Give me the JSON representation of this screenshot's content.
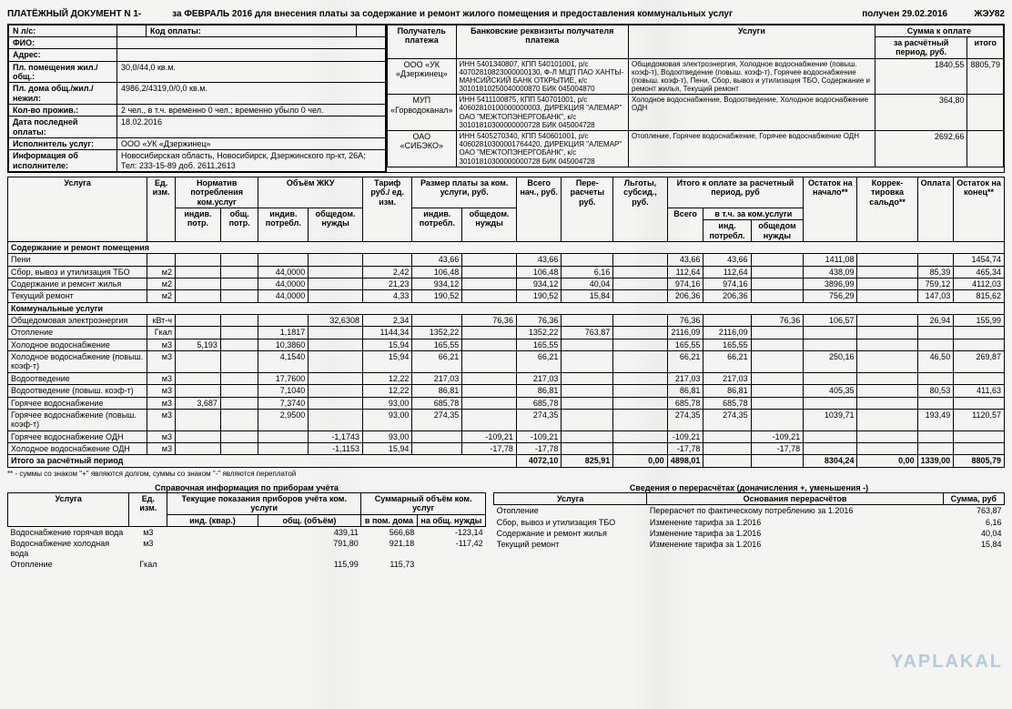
{
  "header": {
    "title_left": "ПЛАТЁЖНЫЙ ДОКУМЕНТ N 1-",
    "title_mid": "за ФЕВРАЛЬ 2016 для внесения платы за содержание и ремонт жилого помещения и предоставления коммунальных услуг",
    "received": "получен 29.02.2016",
    "right": "ЖЭУ82"
  },
  "client": {
    "acc_label": "N л/с:",
    "code_label": "Код оплаты:",
    "code_val": "",
    "fio_label": "ФИО:",
    "addr_label": "Адрес:",
    "area_label": "Пл. помещения жил./общ.:",
    "area_val": "30,0/44,0 кв.м.",
    "house_label": "Пл. дома общ./жил./нежил:",
    "house_val": "4986,2/4319,0/0,0 кв.м.",
    "residents_label": "Кол-во прожив.:",
    "residents_val": "2 чел., в т.ч. временно 0 чел.; временно убыло 0 чел.",
    "lastpay_label": "Дата последней оплаты:",
    "lastpay_val": "18.02.2016",
    "exec_label": "Исполнитель услуг:",
    "exec_val": "ООО «УК «Дзержинец»",
    "execinfo_label": "Информация об исполнителе:",
    "execinfo_val": "Новосибирская область, Новосибирск, Дзержинского пр-кт, 26А; Тел: 233-15-89 доб. 2611,2613"
  },
  "recipients_header": {
    "c1": "Получатель платежа",
    "c2": "Банковские реквизиты получателя платежа",
    "c3": "Услуги",
    "c4": "Сумма к оплате",
    "c4a": "за расчётный период, руб.",
    "c4b": "итого"
  },
  "recipients": [
    {
      "name": "ООО «УК «Дзержинец»",
      "bank": "ИНН 5401340807, КПП 540101001, р/с 40702810823000000130, Ф-Л МЦП ПАО ХАНТЫ-МАНСИЙСКИЙ БАНК ОТКРЫТИЕ, к/с 30101810250040000870 БИК 045004870",
      "svc": "Общедомовая электроэнергия, Холодное водоснабжение (повыш. коэф-т), Водоотведение (повыш. коэф-т), Горячее водоснабжение (повыш. коэф-т), Пени, Сбор, вывоз и утилизация ТБО, Содержание и ремонт жилья, Текущий ремонт",
      "p": "1840,55",
      "t": "8805,79"
    },
    {
      "name": "МУП «Горводоканал»",
      "bank": "ИНН 5411100875, КПП 540701001, р/с 40602810100000000003, ДИРЕКЦИЯ \"АЛЕМАР\" ОАО \"МЕЖТОПЭНЕРГОБАНК\", к/с 30101810300000000728 БИК 045004728",
      "svc": "Холодное водоснабжение, Водоотведение, Холодное водоснабжение ОДН",
      "p": "364,80",
      "t": ""
    },
    {
      "name": "ОАО «СИБЭКО»",
      "bank": "ИНН 5405270340, КПП 540601001, р/с 40602810300001764420, ДИРЕКЦИЯ \"АЛЕМАР\" ОАО \"МЕЖТОПЭНЕРГОБАНК\", к/с 30101810300000000728 БИК 045004728",
      "svc": "Отопление, Горячее водоснабжение, Горячее водоснабжение ОДН",
      "p": "2692,66",
      "t": ""
    }
  ],
  "main_header": {
    "c0": "Услуга",
    "c1": "Ед. изм.",
    "c2": "Норматив потребления ком.услуг",
    "c2a": "индив. потр.",
    "c2b": "общ. потр.",
    "c3": "Объём ЖКУ",
    "c3a": "индив. потребл.",
    "c3b": "общедом. нужды",
    "c4": "Тариф руб./ ед. изм.",
    "c5": "Размер платы за ком. услуги, руб.",
    "c5a": "индив. потребл.",
    "c5b": "общедом. нужды",
    "c6": "Всего нач., руб.",
    "c7": "Пере-расчеты руб.",
    "c8": "Льготы, субсид., руб.",
    "c9": "Итого к оплате за расчетный период, руб",
    "c9a": "Всего",
    "c9b": "в т.ч. за ком.услуги",
    "c9b1": "инд. потребл.",
    "c9b2": "общедом нужды",
    "c10": "Остаток на начало**",
    "c11": "Коррек-тировка сальдо**",
    "c12": "Оплата",
    "c13": "Остаток на конец**"
  },
  "section1": "Содержание и ремонт помещения",
  "rows1": [
    {
      "n": "Пени",
      "u": "",
      "np": "",
      "op": "",
      "iv": "",
      "ov": "",
      "t": "",
      "pi": "43,66",
      "po": "",
      "tot": "43,66",
      "per": "",
      "lg": "",
      "ip": "43,66",
      "ipi": "43,66",
      "ipo": "",
      "ost": "1411,08",
      "kor": "",
      "opl": "",
      "end": "1454,74"
    },
    {
      "n": "Сбор, вывоз и утилизация ТБО",
      "u": "м2",
      "np": "",
      "op": "",
      "iv": "44,0000",
      "ov": "",
      "t": "2,42",
      "pi": "106,48",
      "po": "",
      "tot": "106,48",
      "per": "6,16",
      "lg": "",
      "ip": "112,64",
      "ipi": "112,64",
      "ipo": "",
      "ost": "438,09",
      "kor": "",
      "opl": "85,39",
      "end": "465,34"
    },
    {
      "n": "Содержание и ремонт жилья",
      "u": "м2",
      "np": "",
      "op": "",
      "iv": "44,0000",
      "ov": "",
      "t": "21,23",
      "pi": "934,12",
      "po": "",
      "tot": "934,12",
      "per": "40,04",
      "lg": "",
      "ip": "974,16",
      "ipi": "974,16",
      "ipo": "",
      "ost": "3896,99",
      "kor": "",
      "opl": "759,12",
      "end": "4112,03"
    },
    {
      "n": "Текущий ремонт",
      "u": "м2",
      "np": "",
      "op": "",
      "iv": "44,0000",
      "ov": "",
      "t": "4,33",
      "pi": "190,52",
      "po": "",
      "tot": "190,52",
      "per": "15,84",
      "lg": "",
      "ip": "206,36",
      "ipi": "206,36",
      "ipo": "",
      "ost": "756,29",
      "kor": "",
      "opl": "147,03",
      "end": "815,62"
    }
  ],
  "section2": "Коммунальные услуги",
  "rows2": [
    {
      "n": "Общедомовая электроэнергия",
      "u": "кВт-ч",
      "np": "",
      "op": "",
      "iv": "",
      "ov": "32,6308",
      "t": "2,34",
      "pi": "",
      "po": "76,36",
      "tot": "76,36",
      "per": "",
      "lg": "",
      "ip": "76,36",
      "ipi": "",
      "ipo": "76,36",
      "ost": "106,57",
      "kor": "",
      "opl": "26,94",
      "end": "155,99"
    },
    {
      "n": "Отопление",
      "u": "Гкал",
      "np": "",
      "op": "",
      "iv": "1,1817",
      "ov": "",
      "t": "1144,34",
      "pi": "1352,22",
      "po": "",
      "tot": "1352,22",
      "per": "763,87",
      "lg": "",
      "ip": "2116,09",
      "ipi": "2116,09",
      "ipo": "",
      "ost": "",
      "kor": "",
      "opl": "",
      "end": ""
    },
    {
      "n": "Холодное водоснабжение",
      "u": "м3",
      "np": "5,193",
      "op": "",
      "iv": "10,3860",
      "ov": "",
      "t": "15,94",
      "pi": "165,55",
      "po": "",
      "tot": "165,55",
      "per": "",
      "lg": "",
      "ip": "165,55",
      "ipi": "165,55",
      "ipo": "",
      "ost": "",
      "kor": "",
      "opl": "",
      "end": ""
    },
    {
      "n": "Холодное водоснабжение (повыш. коэф-т)",
      "u": "м3",
      "np": "",
      "op": "",
      "iv": "4,1540",
      "ov": "",
      "t": "15,94",
      "pi": "66,21",
      "po": "",
      "tot": "66,21",
      "per": "",
      "lg": "",
      "ip": "66,21",
      "ipi": "66,21",
      "ipo": "",
      "ost": "250,16",
      "kor": "",
      "opl": "46,50",
      "end": "269,87"
    },
    {
      "n": "Водоотведение",
      "u": "м3",
      "np": "",
      "op": "",
      "iv": "17,7600",
      "ov": "",
      "t": "12,22",
      "pi": "217,03",
      "po": "",
      "tot": "217,03",
      "per": "",
      "lg": "",
      "ip": "217,03",
      "ipi": "217,03",
      "ipo": "",
      "ost": "",
      "kor": "",
      "opl": "",
      "end": ""
    },
    {
      "n": "Водоотведение (повыш. коэф-т)",
      "u": "м3",
      "np": "",
      "op": "",
      "iv": "7,1040",
      "ov": "",
      "t": "12,22",
      "pi": "86,81",
      "po": "",
      "tot": "86,81",
      "per": "",
      "lg": "",
      "ip": "86,81",
      "ipi": "86,81",
      "ipo": "",
      "ost": "405,35",
      "kor": "",
      "opl": "80,53",
      "end": "411,63"
    },
    {
      "n": "Горячее водоснабжение",
      "u": "м3",
      "np": "3,687",
      "op": "",
      "iv": "7,3740",
      "ov": "",
      "t": "93,00",
      "pi": "685,78",
      "po": "",
      "tot": "685,78",
      "per": "",
      "lg": "",
      "ip": "685,78",
      "ipi": "685,78",
      "ipo": "",
      "ost": "",
      "kor": "",
      "opl": "",
      "end": ""
    },
    {
      "n": "Горячее водоснабжение (повыш. коэф-т)",
      "u": "м3",
      "np": "",
      "op": "",
      "iv": "2,9500",
      "ov": "",
      "t": "93,00",
      "pi": "274,35",
      "po": "",
      "tot": "274,35",
      "per": "",
      "lg": "",
      "ip": "274,35",
      "ipi": "274,35",
      "ipo": "",
      "ost": "1039,71",
      "kor": "",
      "opl": "193,49",
      "end": "1120,57"
    },
    {
      "n": "Горячее водоснабжение ОДН",
      "u": "м3",
      "np": "",
      "op": "",
      "iv": "",
      "ov": "-1,1743",
      "t": "93,00",
      "pi": "",
      "po": "-109,21",
      "tot": "-109,21",
      "per": "",
      "lg": "",
      "ip": "-109,21",
      "ipi": "",
      "ipo": "-109,21",
      "ost": "",
      "kor": "",
      "opl": "",
      "end": ""
    },
    {
      "n": "Холодное водоснабжение ОДН",
      "u": "м3",
      "np": "",
      "op": "",
      "iv": "",
      "ov": "-1,1153",
      "t": "15,94",
      "pi": "",
      "po": "-17,78",
      "tot": "-17,78",
      "per": "",
      "lg": "",
      "ip": "-17,78",
      "ipi": "",
      "ipo": "-17,78",
      "ost": "",
      "kor": "",
      "opl": "",
      "end": ""
    }
  ],
  "total": {
    "n": "Итого за расчётный период",
    "tot": "4072,10",
    "per": "825,91",
    "lg": "0,00",
    "ip": "4898,01",
    "ost": "8304,24",
    "kor": "0,00",
    "opl": "1339,00",
    "end": "8805,79"
  },
  "footnote": "** - суммы со знаком \"+\" являются долгом, суммы со знаком \"-\" являются переплатой",
  "meters": {
    "title": "Справочная информация по приборам учёта",
    "h": {
      "c0": "Услуга",
      "c1": "Ед. изм.",
      "c2": "Текущие показания приборов учёта ком. услуги",
      "c2a": "инд. (квар.)",
      "c2b": "общ. (объём)",
      "c3": "Суммарный объём ком. услуг",
      "c3a": "в пом. дома",
      "c3b": "на общ. нужды"
    },
    "rows": [
      {
        "n": "Водоснабжение горячая вода",
        "u": "м3",
        "a": "",
        "b": "439,11",
        "c": "566,68",
        "d": "-123,14"
      },
      {
        "n": "Водоснабжение холодная вода",
        "u": "м3",
        "a": "",
        "b": "791,80",
        "c": "921,18",
        "d": "-117,42"
      },
      {
        "n": "Отопление",
        "u": "Гкал",
        "a": "",
        "b": "115,99",
        "c": "115,73",
        "d": ""
      }
    ]
  },
  "recalc": {
    "title": "Сведения о перерасчётах (доначисления +, уменьшения -)",
    "h": {
      "c0": "Услуга",
      "c1": "Основания перерасчётов",
      "c2": "Сумма, руб"
    },
    "rows": [
      {
        "n": "Отопление",
        "r": "Перерасчет по фактическому потреблению за 1.2016",
        "s": "763,87"
      },
      {
        "n": "Сбор, вывоз и утилизация ТБО",
        "r": "Изменение тарифа за 1.2016",
        "s": "6,16"
      },
      {
        "n": "Содержание и ремонт жилья",
        "r": "Изменение тарифа за 1.2016",
        "s": "40,04"
      },
      {
        "n": "Текущий ремонт",
        "r": "Изменение тарифа за 1.2016",
        "s": "15,84"
      }
    ]
  },
  "watermark": "YAPLAKAL"
}
